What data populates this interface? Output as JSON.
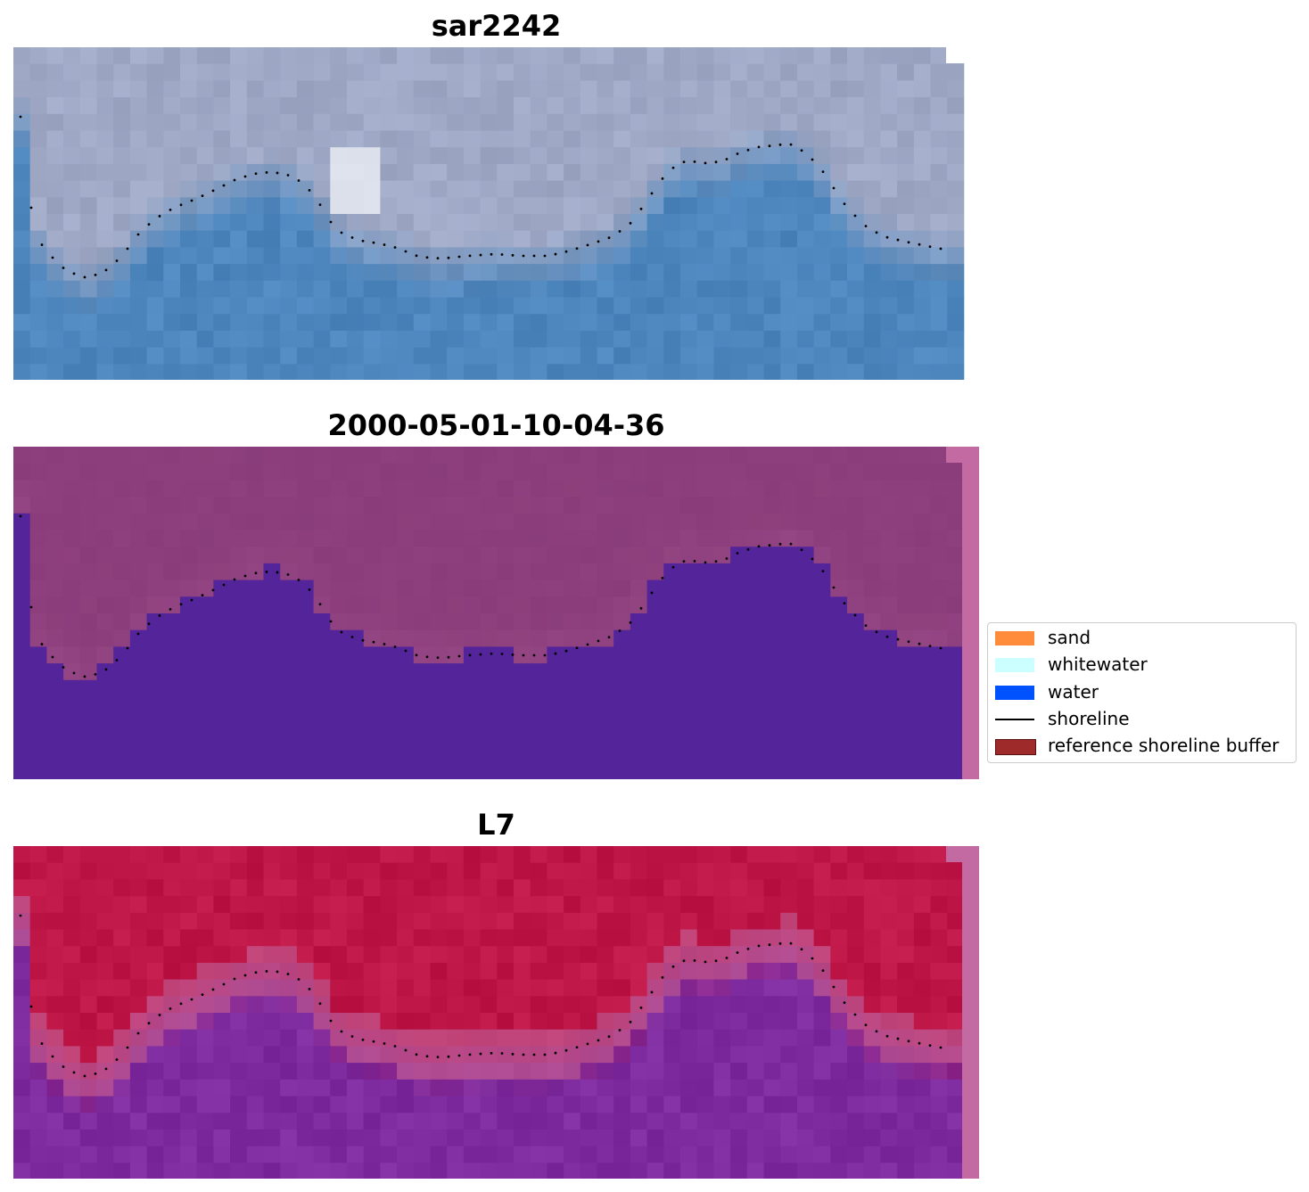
{
  "panels": [
    {
      "id": "rgb",
      "title": "sar2242"
    },
    {
      "id": "classified",
      "title": "2000-05-01-10-04-36"
    },
    {
      "id": "index",
      "title": "L7"
    }
  ],
  "legend": {
    "items": [
      {
        "label": "sand",
        "color": "#ff8c3a",
        "kind": "patch"
      },
      {
        "label": "whitewater",
        "color": "#ccffff",
        "kind": "patch"
      },
      {
        "label": "water",
        "color": "#0052ff",
        "kind": "patch"
      },
      {
        "label": "shoreline",
        "color": "#000000",
        "kind": "line"
      },
      {
        "label": "reference shoreline buffer",
        "color": "#9e2a2a",
        "kind": "patch"
      }
    ]
  },
  "colors": {
    "rgb_land": "#9fa9c6",
    "rgb_water": "#4d86bd",
    "rgb_bright": "#f1f4f8",
    "class_land": "#8c3e7c",
    "class_water": "#53249a",
    "buffer_strip": "#c46aa2",
    "index_land": "#be1646",
    "index_water": "#7d2b9e",
    "shoreline_dots": "#000000"
  }
}
